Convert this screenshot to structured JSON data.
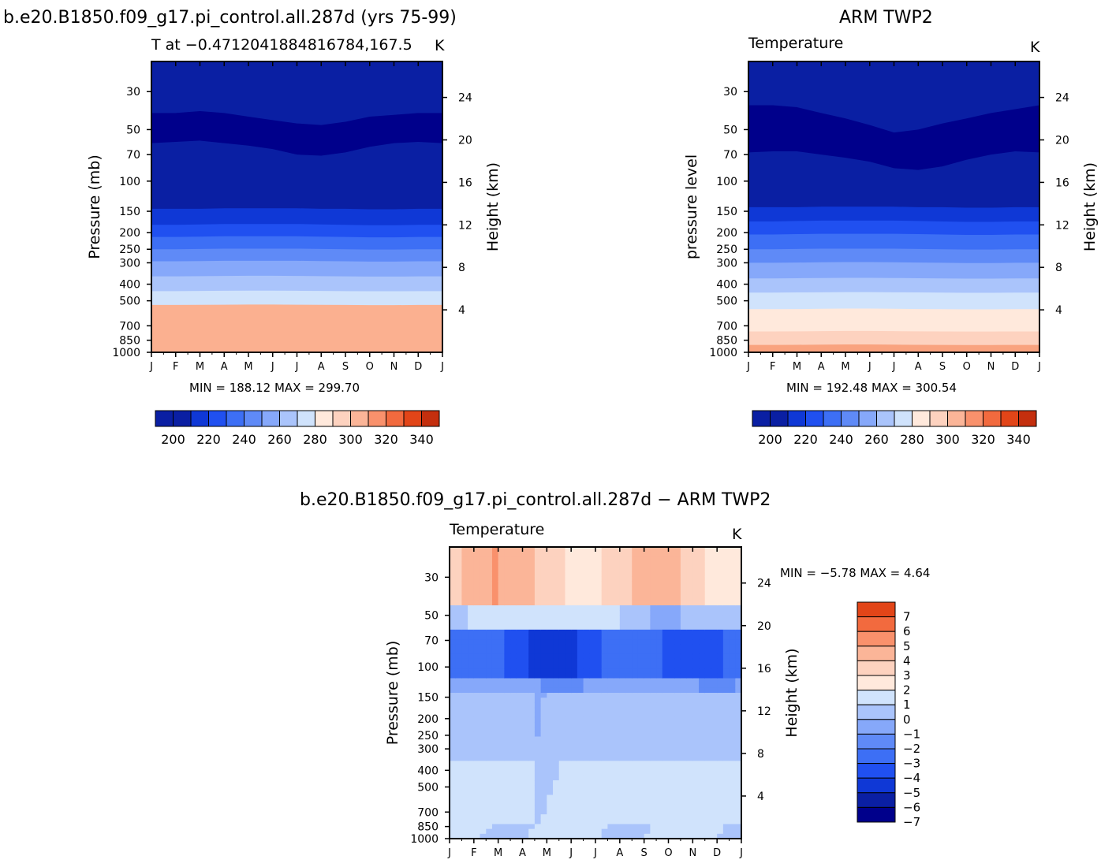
{
  "palette": [
    "#00008b",
    "#0a1fa3",
    "#0f38d6",
    "#2050f0",
    "#3d6ff5",
    "#5f8af7",
    "#86a8fa",
    "#aac4fb",
    "#d0e3fc",
    "#ffe9dc",
    "#fdd2bf",
    "#fbb598",
    "#f9916c",
    "#f26a3e",
    "#e24518",
    "#c42f0e",
    "#9a1a08",
    "#7a0b05"
  ],
  "chart_data": [
    {
      "type": "heatmap",
      "name": "model",
      "header": "b.e20.B1850.f09_g17.pi_control.all.287d (yrs 75-99)",
      "subtitle_left": "T at −0.4712041884816784,167.5",
      "subtitle_right": "K",
      "ylabel": "Pressure (mb)",
      "y2label": "Height (km)",
      "x_ticks": [
        "J",
        "F",
        "M",
        "A",
        "M",
        "J",
        "J",
        "A",
        "S",
        "O",
        "N",
        "D",
        "J"
      ],
      "p_ticks": [
        30,
        50,
        70,
        100,
        150,
        200,
        250,
        300,
        400,
        500,
        700,
        850,
        1000
      ],
      "h_ticks": [
        4,
        8,
        12,
        16,
        20,
        24
      ],
      "minmax_text": "MIN = 188.12 MAX = 299.70",
      "min": 188.12,
      "max": 299.7,
      "months": 13,
      "boundaries": [
        {
          "level": 270,
          "p": [
            529,
            529,
            528,
            527,
            526,
            526,
            527,
            528,
            529,
            530,
            530,
            529,
            529
          ]
        },
        {
          "level": 260,
          "p": [
            439,
            439,
            438,
            437,
            436,
            436,
            437,
            438,
            439,
            440,
            440,
            439,
            439
          ]
        },
        {
          "level": 250,
          "p": [
            360,
            360,
            359,
            358,
            357,
            357,
            358,
            359,
            360,
            361,
            361,
            360,
            360
          ]
        },
        {
          "level": 240,
          "p": [
            294,
            294,
            293,
            292,
            292,
            292,
            292,
            293,
            294,
            295,
            295,
            294,
            294
          ]
        },
        {
          "level": 230,
          "p": [
            250,
            250,
            249,
            248,
            248,
            248,
            248,
            249,
            250,
            251,
            251,
            250,
            250
          ]
        },
        {
          "level": 220,
          "p": [
            212,
            212,
            211,
            210,
            210,
            210,
            210,
            211,
            212,
            213,
            213,
            212,
            212
          ]
        },
        {
          "level": 210,
          "p": [
            180,
            180,
            179,
            178,
            178,
            178,
            178,
            179,
            180,
            181,
            181,
            180,
            180
          ]
        },
        {
          "level": 200,
          "p": [
            145,
            145,
            145,
            144,
            144,
            144,
            144,
            145,
            145,
            146,
            146,
            145,
            145
          ]
        },
        {
          "level": 190,
          "p": [
            60,
            59,
            58,
            60,
            62,
            65,
            70,
            71,
            68,
            63,
            60,
            59,
            60
          ]
        },
        {
          "level": 200,
          "p": [
            40,
            40,
            39,
            40,
            42,
            44,
            46,
            47,
            45,
            42,
            41,
            40,
            40
          ]
        },
        {
          "level": 210,
          "p": [
            20,
            20,
            20,
            20,
            20,
            20,
            20,
            20,
            20,
            20,
            20,
            20,
            20
          ]
        }
      ],
      "colorbar": {
        "labels": [
          "200",
          "220",
          "240",
          "260",
          "280",
          "300",
          "320",
          "340"
        ],
        "levels": [
          195,
          200,
          210,
          220,
          230,
          240,
          250,
          260,
          270,
          280,
          290,
          300,
          310,
          320,
          330,
          340,
          350
        ]
      }
    },
    {
      "type": "heatmap",
      "name": "obs",
      "header": "ARM TWP2",
      "subtitle_left": "Temperature",
      "subtitle_right": "K",
      "ylabel": "pressure level",
      "y2label": "Height (km)",
      "x_ticks": [
        "J",
        "F",
        "M",
        "A",
        "M",
        "J",
        "J",
        "A",
        "S",
        "O",
        "N",
        "D",
        "J"
      ],
      "p_ticks": [
        30,
        50,
        70,
        100,
        150,
        200,
        250,
        300,
        400,
        500,
        700,
        850,
        1000
      ],
      "h_ticks": [
        4,
        8,
        12,
        16,
        20,
        24
      ],
      "minmax_text": "MIN = 192.48 MAX = 300.54",
      "min": 192.48,
      "max": 300.54,
      "months": 13,
      "boundaries": [
        {
          "level": 290,
          "p": [
            905,
            905,
            904,
            902,
            900,
            900,
            902,
            904,
            905,
            906,
            906,
            905,
            905
          ]
        },
        {
          "level": 280,
          "p": [
            755,
            755,
            754,
            752,
            750,
            750,
            752,
            754,
            755,
            756,
            756,
            755,
            755
          ]
        },
        {
          "level": 270,
          "p": [
            560,
            560,
            559,
            557,
            555,
            555,
            557,
            559,
            560,
            561,
            561,
            560,
            560
          ]
        },
        {
          "level": 260,
          "p": [
            448,
            448,
            447,
            446,
            445,
            445,
            446,
            447,
            448,
            449,
            449,
            448,
            448
          ]
        },
        {
          "level": 250,
          "p": [
            370,
            370,
            369,
            368,
            367,
            367,
            368,
            369,
            370,
            371,
            371,
            370,
            370
          ]
        },
        {
          "level": 240,
          "p": [
            300,
            300,
            299,
            298,
            297,
            297,
            298,
            299,
            300,
            301,
            301,
            300,
            300
          ]
        },
        {
          "level": 230,
          "p": [
            250,
            250,
            249,
            248,
            248,
            248,
            248,
            249,
            250,
            251,
            251,
            250,
            250
          ]
        },
        {
          "level": 220,
          "p": [
            205,
            205,
            204,
            203,
            203,
            203,
            203,
            204,
            205,
            206,
            206,
            205,
            205
          ]
        },
        {
          "level": 210,
          "p": [
            172,
            172,
            171,
            170,
            170,
            170,
            170,
            171,
            172,
            173,
            173,
            172,
            172
          ]
        },
        {
          "level": 200,
          "p": [
            142,
            142,
            142,
            141,
            141,
            141,
            141,
            142,
            142,
            143,
            143,
            142,
            142
          ]
        },
        {
          "level": 190,
          "p": [
            68,
            67,
            67,
            70,
            73,
            77,
            84,
            86,
            82,
            75,
            70,
            67,
            68
          ]
        },
        {
          "level": 200,
          "p": [
            36,
            36,
            37,
            40,
            43,
            47,
            52,
            50,
            46,
            43,
            40,
            38,
            36
          ]
        },
        {
          "level": 210,
          "p": [
            20,
            20,
            20,
            20,
            20,
            20,
            20,
            20,
            20,
            20,
            20,
            20,
            20
          ]
        }
      ],
      "colorbar": {
        "labels": [
          "200",
          "220",
          "240",
          "260",
          "280",
          "300",
          "320",
          "340"
        ],
        "levels": [
          195,
          200,
          210,
          220,
          230,
          240,
          250,
          260,
          270,
          280,
          290,
          300,
          310,
          320,
          330,
          340,
          350
        ]
      }
    },
    {
      "type": "heatmap",
      "name": "diff",
      "header": "b.e20.B1850.f09_g17.pi_control.all.287d − ARM TWP2",
      "subtitle_left": "Temperature",
      "subtitle_right": "K",
      "ylabel": "Pressure (mb)",
      "y2label": "Height (km)",
      "x_ticks": [
        "J",
        "F",
        "M",
        "A",
        "M",
        "J",
        "J",
        "A",
        "S",
        "O",
        "N",
        "D",
        "J"
      ],
      "p_ticks": [
        30,
        50,
        70,
        100,
        150,
        200,
        250,
        300,
        400,
        500,
        700,
        850,
        1000
      ],
      "h_ticks": [
        4,
        8,
        12,
        16,
        20,
        24
      ],
      "minmax_text": "MIN =   −5.78 MAX =    4.64",
      "min": -5.78,
      "max": 4.64,
      "colorbar": {
        "labels": [
          "7",
          "6",
          "5",
          "4",
          "3",
          "2",
          "1",
          "0",
          "−1",
          "−2",
          "−3",
          "−4",
          "−5",
          "−6",
          "−7"
        ]
      }
    }
  ]
}
